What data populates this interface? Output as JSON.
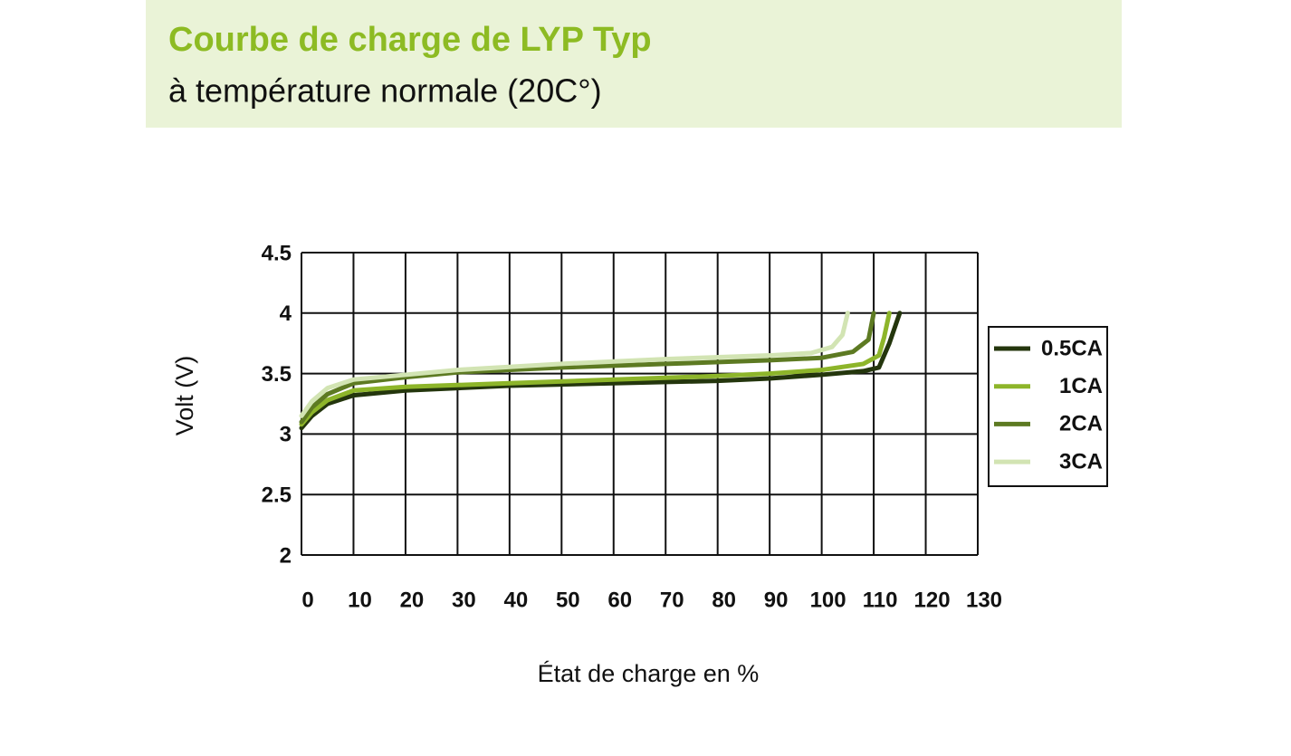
{
  "chart_data": {
    "type": "line",
    "title": "Courbe de charge de LYP Typ",
    "subtitle": "à température normale (20C°)",
    "x_label": "État de charge en %",
    "y_label": "Volt (V)",
    "xlim": [
      0,
      130
    ],
    "xticks": [
      0,
      10,
      20,
      30,
      40,
      50,
      60,
      70,
      80,
      90,
      100,
      110,
      120,
      130
    ],
    "ylim": [
      2,
      4.5
    ],
    "yticks": [
      2,
      2.5,
      3,
      3.5,
      4,
      4.5
    ],
    "grid": true,
    "legend": "right",
    "series": [
      {
        "name": "0.5CA",
        "color": "#24360d",
        "x": [
          0,
          2,
          5,
          10,
          20,
          40,
          60,
          80,
          90,
          100,
          108,
          111,
          113,
          115
        ],
        "values": [
          3.05,
          3.15,
          3.25,
          3.32,
          3.36,
          3.4,
          3.42,
          3.44,
          3.46,
          3.49,
          3.52,
          3.55,
          3.75,
          4
        ]
      },
      {
        "name": "1CA",
        "color": "#8db52a",
        "x": [
          0,
          2,
          5,
          10,
          20,
          40,
          60,
          80,
          90,
          100,
          108,
          111,
          112,
          113
        ],
        "values": [
          3.08,
          3.18,
          3.28,
          3.36,
          3.39,
          3.42,
          3.45,
          3.48,
          3.5,
          3.53,
          3.58,
          3.65,
          3.8,
          4
        ]
      },
      {
        "name": "2CA",
        "color": "#5d7a22",
        "x": [
          0,
          2,
          5,
          10,
          20,
          30,
          50,
          70,
          90,
          100,
          106,
          109,
          110
        ],
        "values": [
          3.1,
          3.22,
          3.33,
          3.42,
          3.47,
          3.51,
          3.55,
          3.58,
          3.61,
          3.63,
          3.68,
          3.78,
          4
        ]
      },
      {
        "name": "3CA",
        "color": "#d2e4b3",
        "x": [
          0,
          2,
          5,
          10,
          20,
          30,
          50,
          70,
          90,
          98,
          102,
          104,
          105
        ],
        "values": [
          3.15,
          3.27,
          3.38,
          3.45,
          3.49,
          3.53,
          3.58,
          3.62,
          3.65,
          3.67,
          3.72,
          3.82,
          4
        ]
      }
    ]
  }
}
